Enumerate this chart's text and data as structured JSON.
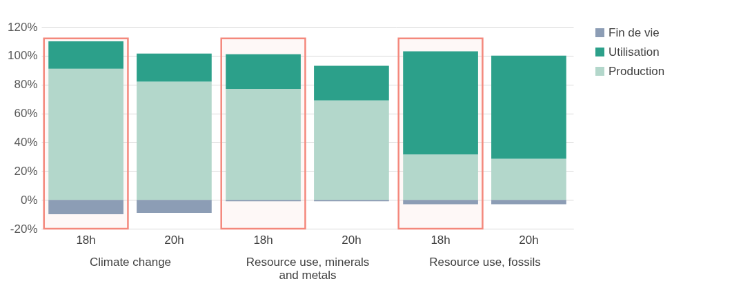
{
  "chart_data": [
    {
      "type": "bar",
      "stacked": true,
      "xlabel": "Climate change",
      "categories": [
        "18h",
        "20h"
      ],
      "series": [
        {
          "color": "#b3d7cb",
          "values": [
            91,
            82
          ]
        },
        {
          "color": "#2ca08a",
          "values": [
            19,
            19.5
          ]
        },
        {
          "color": "#8c9db5",
          "values": [
            -10,
            -9
          ]
        }
      ],
      "ylim": [
        -20,
        120
      ],
      "yticks": [
        {
          "value": -20,
          "label": "-20%"
        },
        {
          "value": 0,
          "label": "0%"
        },
        {
          "value": 20,
          "label": "20%"
        },
        {
          "value": 40,
          "label": "40%"
        },
        {
          "value": 60,
          "label": "60%"
        },
        {
          "value": 80,
          "label": "80%"
        },
        {
          "value": 100,
          "label": "100%"
        },
        {
          "value": 120,
          "label": "120%"
        }
      ],
      "grid": "y",
      "bands": [
        {
          "axis": "x",
          "from": "18h",
          "to": "18h",
          "color": "#f4887c"
        }
      ]
    },
    {
      "type": "bar",
      "stacked": true,
      "xlabel": "Resource use, minerals and metals",
      "categories": [
        "18h",
        "20h"
      ],
      "series": [
        {
          "color": "#b3d7cb",
          "values": [
            77,
            69
          ]
        },
        {
          "color": "#2ca08a",
          "values": [
            24,
            24
          ]
        },
        {
          "color": "#8c9db5",
          "values": [
            -1,
            -1
          ]
        }
      ],
      "ylim": [
        -20,
        120
      ],
      "yticks": [
        -20,
        0,
        20,
        40,
        60,
        80,
        100,
        120
      ],
      "grid": "y",
      "tick_labels": "x",
      "bands": [
        {
          "axis": "x",
          "from": "18h",
          "to": "18h",
          "color": "#f4887c"
        }
      ]
    },
    {
      "type": "bar",
      "stacked": true,
      "xlabel": "Resource use, fossils",
      "categories": [
        "18h",
        "20h"
      ],
      "series": [
        {
          "name": "Production",
          "color": "#b3d7cb",
          "values": [
            31.5,
            28.5
          ]
        },
        {
          "name": "Utilisation",
          "color": "#2ca08a",
          "values": [
            71.5,
            71.5
          ]
        },
        {
          "name": "Fin de vie",
          "color": "#8c9db5",
          "values": [
            -3,
            -3
          ]
        }
      ],
      "ylim": [
        -20,
        120
      ],
      "yticks": [
        -20,
        0,
        20,
        40,
        60,
        80,
        100,
        120
      ],
      "grid": "y",
      "legend": "right",
      "tick_labels": "x",
      "bands": [
        {
          "axis": "x",
          "from": "18h",
          "to": "18h",
          "color": "#f4887c"
        }
      ]
    }
  ]
}
